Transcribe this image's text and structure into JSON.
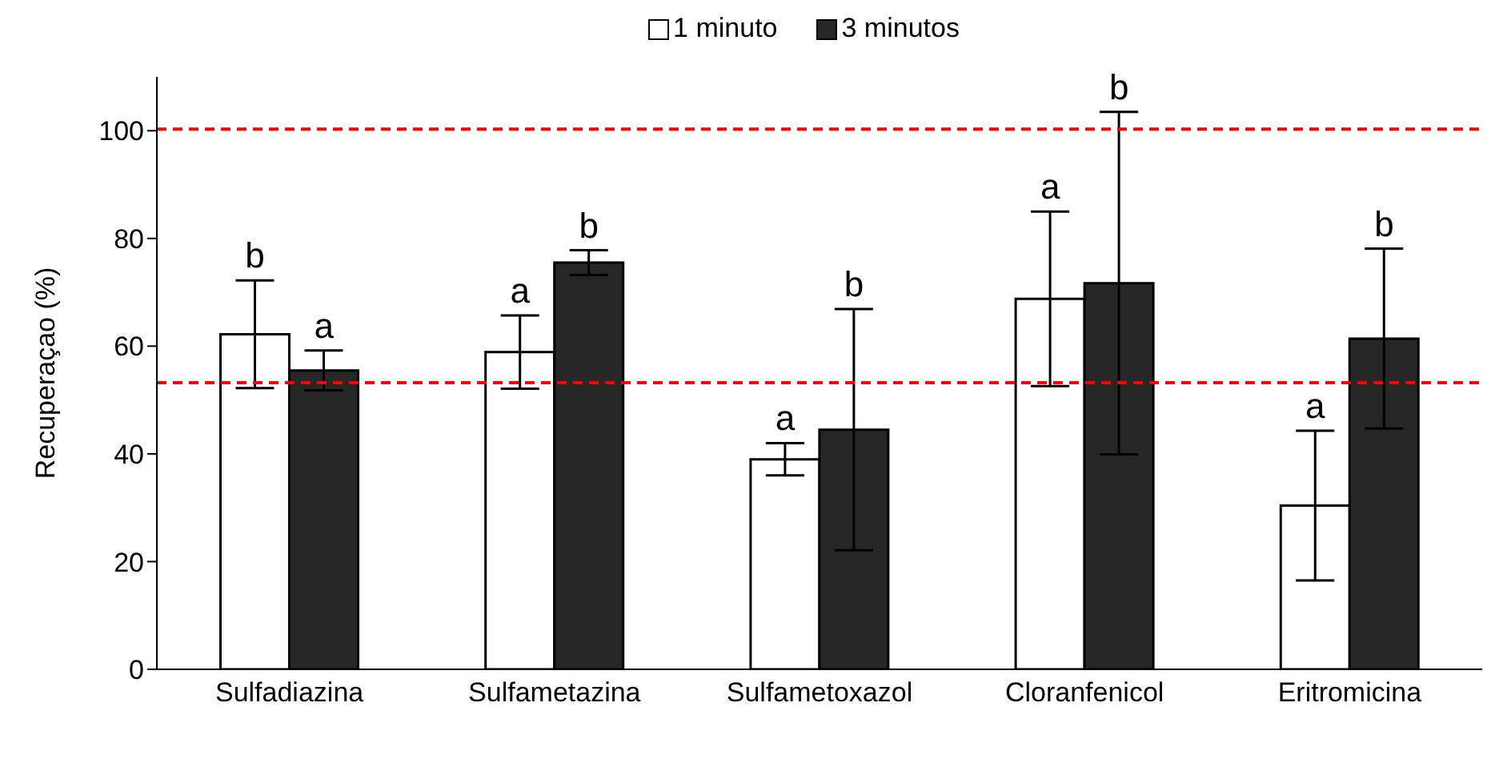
{
  "chart_data": {
    "type": "bar",
    "ylabel": "Recuperaçao (%)",
    "categories": [
      "Sulfadiazina",
      "Sulfametazina",
      "Sulfametoxazol",
      "Cloranfenicol",
      "Eritromicina"
    ],
    "series": [
      {
        "name": "1 minuto",
        "color": "#ffffff",
        "values": [
          62.2,
          58.9,
          39.0,
          68.8,
          30.4
        ],
        "errors": [
          10.0,
          6.8,
          3.0,
          16.2,
          13.9
        ]
      },
      {
        "name": "3 minutos",
        "color": "#262626",
        "values": [
          55.5,
          75.5,
          44.5,
          71.7,
          61.4
        ],
        "errors": [
          3.7,
          2.3,
          22.4,
          31.8,
          16.7
        ]
      }
    ],
    "annotations": [
      "b",
      "a",
      "a",
      "b",
      "a",
      "b",
      "a",
      "b",
      "a",
      "b"
    ],
    "ylim": [
      0,
      110
    ],
    "yticks": [
      0,
      20,
      40,
      60,
      80,
      100
    ],
    "grid": false,
    "legend": "top",
    "ref_lines": [
      {
        "axis": "y",
        "value": 100.3,
        "color": "#ff0000",
        "line_style": "dashed"
      },
      {
        "axis": "y",
        "value": 53.2,
        "color": "#ff0000",
        "line_style": "dashed"
      }
    ]
  }
}
